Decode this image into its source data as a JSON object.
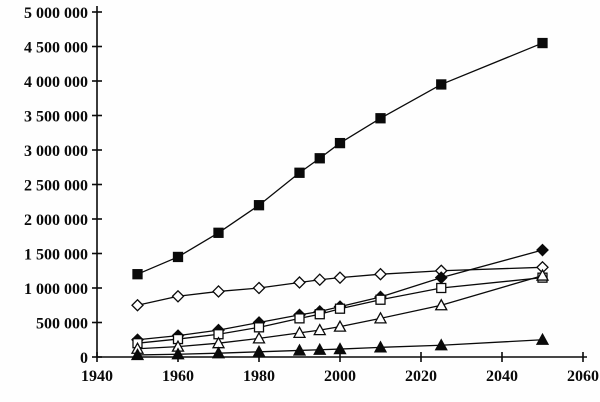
{
  "chart_data": {
    "type": "line",
    "title": "",
    "xlabel": "",
    "ylabel": "",
    "xlim": [
      1940,
      2060
    ],
    "ylim": [
      0,
      5000000
    ],
    "grid": false,
    "legend_position": "none",
    "line_color": "#0a0a0a",
    "background_color": "#fefefe",
    "x_ticks": [
      1940,
      1960,
      1980,
      2000,
      2020,
      2040,
      2060
    ],
    "x_tick_labels": [
      "1940",
      "1960",
      "1980",
      "2000",
      "2020",
      "2040",
      "2060"
    ],
    "y_ticks": [
      0,
      500000,
      1000000,
      1500000,
      2000000,
      2500000,
      3000000,
      3500000,
      4000000,
      4500000,
      5000000
    ],
    "y_tick_labels": [
      "0",
      "500 000",
      "1 000 000",
      "1 500 000",
      "2 000 000",
      "2 500 000",
      "3 000 000",
      "3 500 000",
      "4 000 000",
      "4 500 000",
      "5 000 000"
    ],
    "x": [
      1950,
      1960,
      1970,
      1980,
      1990,
      1995,
      2000,
      2010,
      2025,
      2050
    ],
    "series": [
      {
        "name": "filled-square-series",
        "marker": "filled-square",
        "values": [
          1200000,
          1450000,
          1800000,
          2200000,
          2670000,
          2880000,
          3100000,
          3460000,
          3950000,
          4550000
        ]
      },
      {
        "name": "open-diamond-series",
        "marker": "open-diamond",
        "values": [
          750000,
          880000,
          950000,
          1000000,
          1080000,
          1120000,
          1150000,
          1200000,
          1250000,
          1300000
        ]
      },
      {
        "name": "filled-diamond-series",
        "marker": "filled-diamond",
        "values": [
          250000,
          310000,
          390000,
          500000,
          610000,
          660000,
          730000,
          870000,
          1150000,
          1550000
        ]
      },
      {
        "name": "open-square-series",
        "marker": "open-square",
        "values": [
          200000,
          260000,
          330000,
          430000,
          560000,
          620000,
          700000,
          830000,
          1000000,
          1150000
        ]
      },
      {
        "name": "open-triangle-series",
        "marker": "open-triangle",
        "values": [
          120000,
          150000,
          200000,
          270000,
          350000,
          390000,
          440000,
          560000,
          750000,
          1180000
        ]
      },
      {
        "name": "filled-triangle-series",
        "marker": "filled-triangle",
        "values": [
          30000,
          40000,
          55000,
          75000,
          95000,
          105000,
          115000,
          140000,
          170000,
          250000
        ]
      }
    ]
  }
}
